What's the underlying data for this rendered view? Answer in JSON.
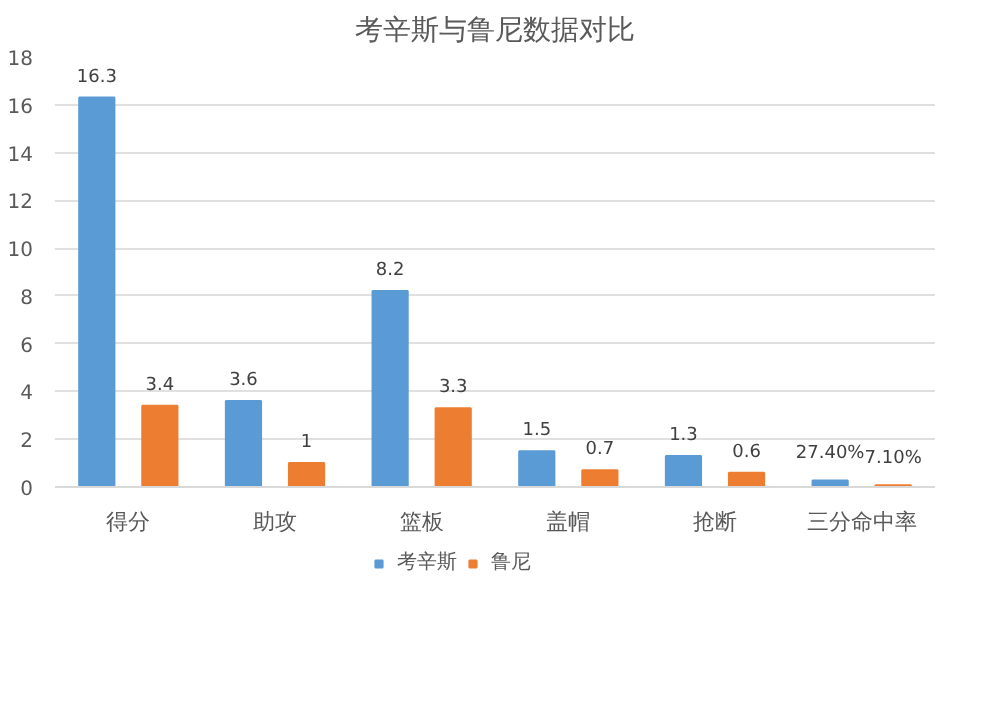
{
  "chart_data": {
    "type": "bar",
    "title": "考辛斯与鲁尼数据对比",
    "categories": [
      "得分",
      "助攻",
      "篮板",
      "盖帽",
      "抢断",
      "三分命中率"
    ],
    "series": [
      {
        "name": "考辛斯",
        "color": "#5b9bd5",
        "values": [
          16.3,
          3.6,
          8.2,
          1.5,
          1.3,
          0.274
        ],
        "value_labels": [
          "16.3",
          "3.6",
          "8.2",
          "1.5",
          "1.3",
          "27.40%"
        ]
      },
      {
        "name": "鲁尼",
        "color": "#ed7d31",
        "values": [
          3.4,
          1,
          3.3,
          0.7,
          0.6,
          0.071
        ],
        "value_labels": [
          "3.4",
          "1",
          "3.3",
          "0.7",
          "0.6",
          "7.10%"
        ]
      }
    ],
    "ylim": [
      0,
      18
    ],
    "yticks": [
      0,
      2,
      4,
      6,
      8,
      10,
      12,
      14,
      16,
      18
    ],
    "grid": "y",
    "legend": "bottom"
  }
}
